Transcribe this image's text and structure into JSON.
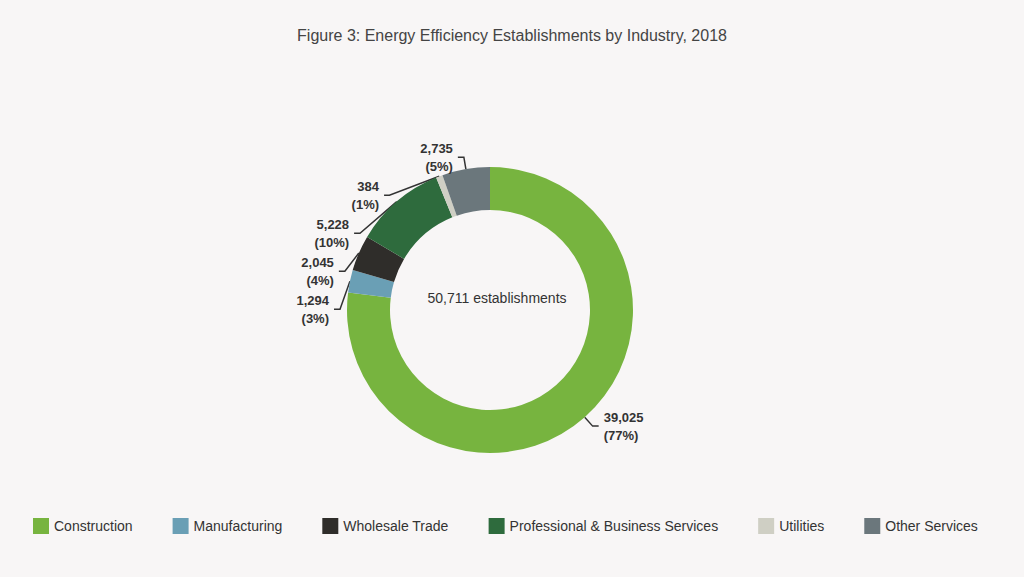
{
  "chart_data": {
    "type": "donut",
    "title": "Figure 3: Energy Efficiency Establishments by Industry, 2018",
    "center_label": "50,711 establishments",
    "categories": [
      "Construction",
      "Manufacturing",
      "Wholesale Trade",
      "Professional & Business Services",
      "Utilities",
      "Other Services"
    ],
    "values": [
      39025,
      1294,
      2045,
      5228,
      384,
      2735
    ],
    "value_labels": [
      "39,025\n(77%)",
      "1,294\n(3%)",
      "2,045\n(4%)",
      "5,228\n(10%)",
      "384\n(1%)",
      "2,735\n(5%)"
    ],
    "colors": [
      "#77b43f",
      "#6a9fb5",
      "#2f2d2a",
      "#2e6b3d",
      "#cfcfc4",
      "#6b777c"
    ],
    "data_labels": true,
    "legend": "bottom"
  }
}
